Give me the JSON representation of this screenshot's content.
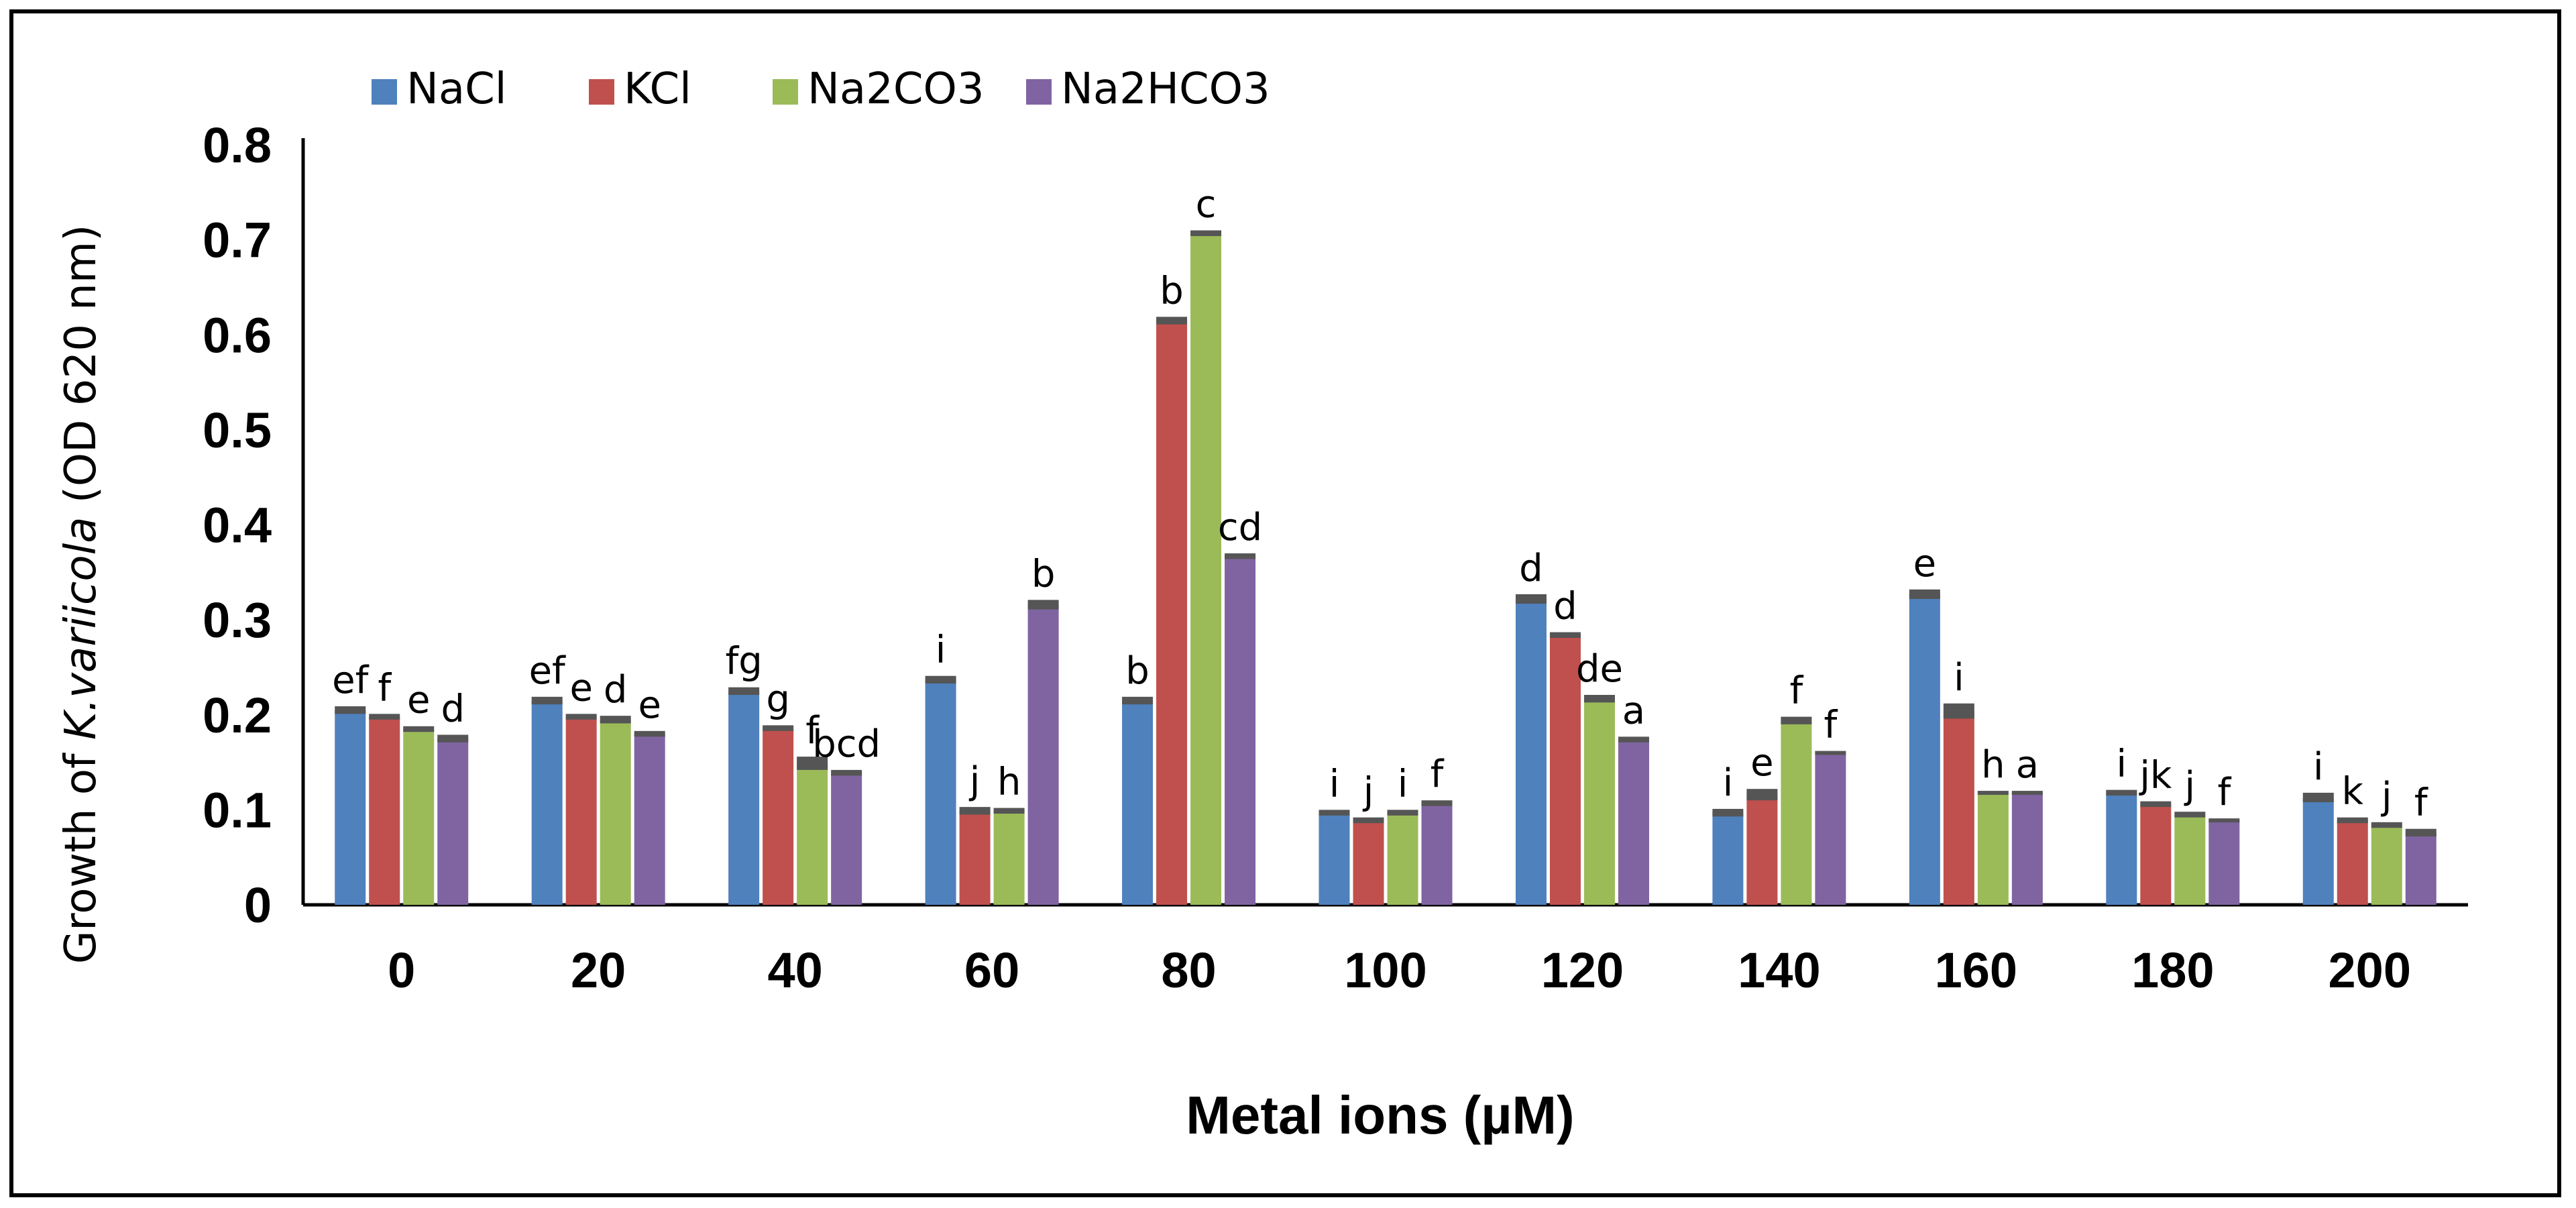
{
  "chart_data": {
    "type": "bar",
    "title": "",
    "xlabel": "Metal ions (µM)",
    "ylabel": {
      "prefix": "Growth of ",
      "species": "K.variicola",
      "suffix": " (OD 620 nm)"
    },
    "ylim": [
      0,
      0.8
    ],
    "yticks": [
      "0",
      "0.1",
      "0.2",
      "0.3",
      "0.4",
      "0.5",
      "0.6",
      "0.7",
      "0.8"
    ],
    "categories": [
      "0",
      "20",
      "40",
      "60",
      "80",
      "100",
      "120",
      "140",
      "160",
      "180",
      "200"
    ],
    "legend_position": "top-left",
    "series": [
      {
        "name": "NaCl",
        "color": "#4f81bd",
        "values": [
          0.205,
          0.215,
          0.225,
          0.237,
          0.215,
          0.097,
          0.322,
          0.097,
          0.327,
          0.118,
          0.113
        ],
        "errors": [
          0.004,
          0.004,
          0.004,
          0.004,
          0.004,
          0.003,
          0.005,
          0.004,
          0.005,
          0.003,
          0.005
        ],
        "letters": [
          "ef",
          "ef",
          "fg",
          "i",
          "b",
          "i",
          "d",
          "i",
          "e",
          "i",
          "i"
        ]
      },
      {
        "name": "KCl",
        "color": "#c0504d",
        "values": [
          0.198,
          0.198,
          0.186,
          0.099,
          0.615,
          0.089,
          0.284,
          0.116,
          0.204,
          0.106,
          0.089
        ],
        "errors": [
          0.003,
          0.003,
          0.003,
          0.004,
          0.004,
          0.003,
          0.003,
          0.006,
          0.008,
          0.003,
          0.003
        ],
        "letters": [
          "f",
          "e",
          "g",
          "j",
          "b",
          "j",
          "d",
          "e",
          "i",
          "jk",
          "k"
        ]
      },
      {
        "name": "Na2CO3",
        "color": "#9bbb59",
        "values": [
          0.185,
          0.195,
          0.149,
          0.099,
          0.707,
          0.097,
          0.217,
          0.194,
          0.118,
          0.095,
          0.084
        ],
        "errors": [
          0.003,
          0.004,
          0.007,
          0.003,
          0.003,
          0.003,
          0.004,
          0.004,
          0.002,
          0.003,
          0.003
        ],
        "letters": [
          "e",
          "d",
          "f",
          "h",
          "c",
          "i",
          "de",
          "f",
          "h",
          "j",
          "j"
        ]
      },
      {
        "name": "Na2HCO3",
        "color": "#8064a2",
        "values": [
          0.175,
          0.18,
          0.139,
          0.316,
          0.367,
          0.107,
          0.174,
          0.16,
          0.118,
          0.089,
          0.076
        ],
        "errors": [
          0.004,
          0.003,
          0.003,
          0.005,
          0.003,
          0.003,
          0.003,
          0.002,
          0.002,
          0.002,
          0.004
        ],
        "letters": [
          "d",
          "e",
          "bcd",
          "b",
          "cd",
          "f",
          "a",
          "f",
          "a",
          "f",
          "f"
        ]
      }
    ]
  }
}
